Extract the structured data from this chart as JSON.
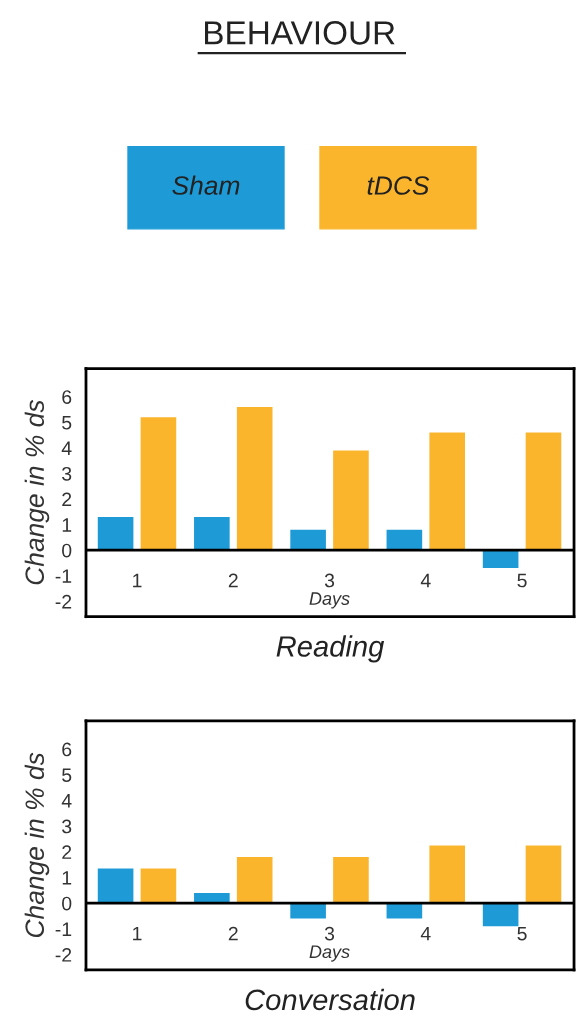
{
  "chart_data": [
    {
      "type": "bar",
      "title": "Reading",
      "annotations": [
        "BEHAVIOUR"
      ],
      "xlabel": "Days",
      "ylabel": "Change in % ds",
      "categories": [
        "1",
        "2",
        "3",
        "4",
        "5"
      ],
      "series": [
        {
          "name": "Sham",
          "color": "#1e9bd7",
          "values": [
            1.3,
            1.3,
            0.8,
            0.8,
            -0.7
          ]
        },
        {
          "name": "tDCS",
          "color": "#fbb52c",
          "values": [
            5.2,
            5.6,
            3.9,
            4.6,
            4.6
          ]
        }
      ],
      "ylim": [
        -2.6,
        7.1
      ],
      "yticks": [
        -2,
        -1,
        0,
        1,
        2,
        3,
        4,
        5,
        6
      ],
      "legend": "top",
      "grid": false
    },
    {
      "type": "bar",
      "title": "Conversation",
      "xlabel": "Days",
      "ylabel": "Change in % ds",
      "categories": [
        "1",
        "2",
        "3",
        "4",
        "5"
      ],
      "series": [
        {
          "color": "#1e9bd7",
          "values": [
            1.35,
            0.4,
            -0.6,
            -0.6,
            -0.9
          ]
        },
        {
          "color": "#fbb52c",
          "values": [
            1.35,
            1.8,
            1.8,
            2.25,
            2.25
          ]
        }
      ],
      "ylim": [
        -2.6,
        7.1
      ],
      "yticks": [
        -2,
        -1,
        0,
        1,
        2,
        3,
        4,
        5,
        6
      ],
      "legend": false,
      "grid": false
    }
  ]
}
